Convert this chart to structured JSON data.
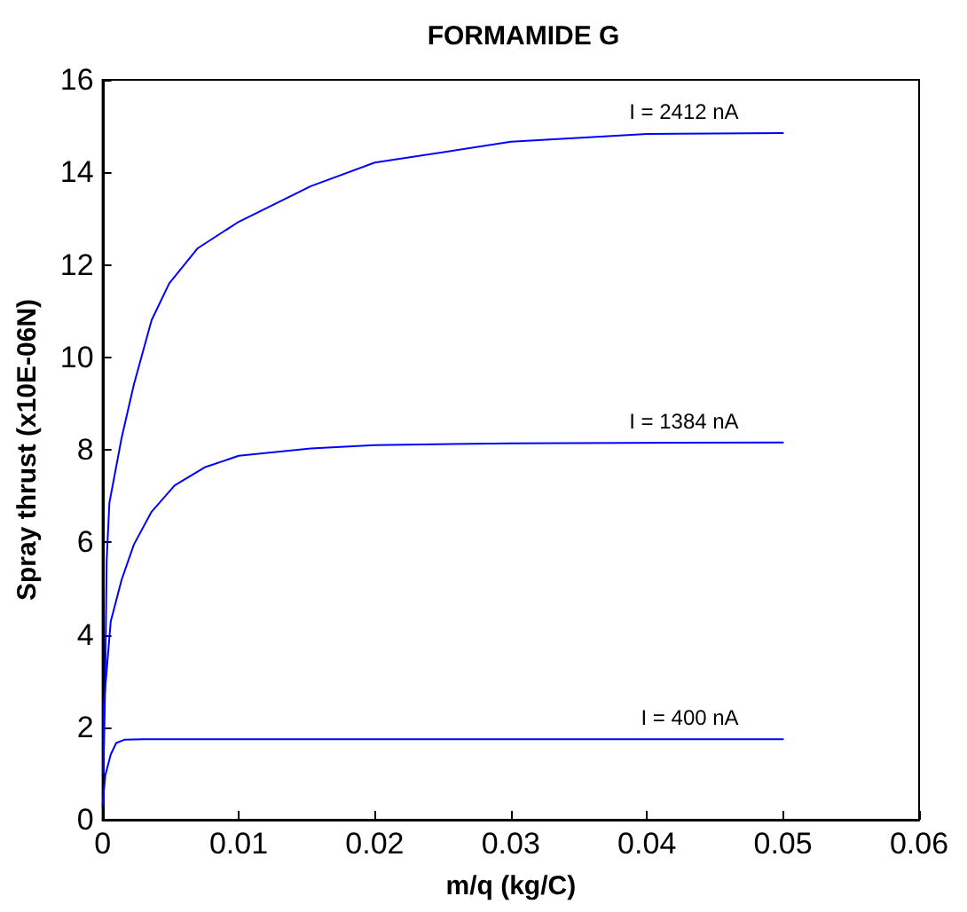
{
  "chart_data": {
    "type": "line",
    "title": "FORMAMIDE G",
    "xlabel": "m/q (kg/C)",
    "ylabel": "Spray thrust (x10E-06N)",
    "xlim": [
      0,
      0.06
    ],
    "xticks": [
      0,
      0.01,
      0.02,
      0.03,
      0.04,
      0.05,
      0.06
    ],
    "ylim": [
      0,
      16
    ],
    "yticks": [
      0,
      2,
      4,
      6,
      8,
      10,
      12,
      14,
      16
    ],
    "grid": false,
    "marker": "none",
    "line_style": "solid",
    "series": [
      {
        "name": "I = 2412 nA",
        "color": "#0000ff",
        "x": [
          0.0001,
          0.0002,
          0.0003,
          0.0005,
          0.0014,
          0.0023,
          0.0036,
          0.0049,
          0.007,
          0.01,
          0.0153,
          0.02,
          0.03,
          0.04,
          0.05
        ],
        "values": [
          1.5,
          3.1,
          5.6,
          6.85,
          8.26,
          9.41,
          10.8,
          11.6,
          12.36,
          12.93,
          13.7,
          14.21,
          14.66,
          14.83,
          14.85
        ]
      },
      {
        "name": "I = 1384 nA",
        "color": "#0000ff",
        "x": [
          5e-05,
          0.0001,
          0.0006,
          0.0014,
          0.0023,
          0.0036,
          0.0053,
          0.0075,
          0.01,
          0.0153,
          0.02,
          0.03,
          0.05
        ],
        "values": [
          1.0,
          2.5,
          4.29,
          5.19,
          5.95,
          6.66,
          7.23,
          7.62,
          7.87,
          8.03,
          8.1,
          8.14,
          8.16
        ]
      },
      {
        "name": "I = 400 nA",
        "color": "#0000ff",
        "x": [
          0,
          0.0002,
          0.0006,
          0.001,
          0.0016,
          0.003,
          0.05
        ],
        "values": [
          0.3,
          0.96,
          1.41,
          1.66,
          1.73,
          1.74,
          1.74
        ]
      }
    ]
  }
}
